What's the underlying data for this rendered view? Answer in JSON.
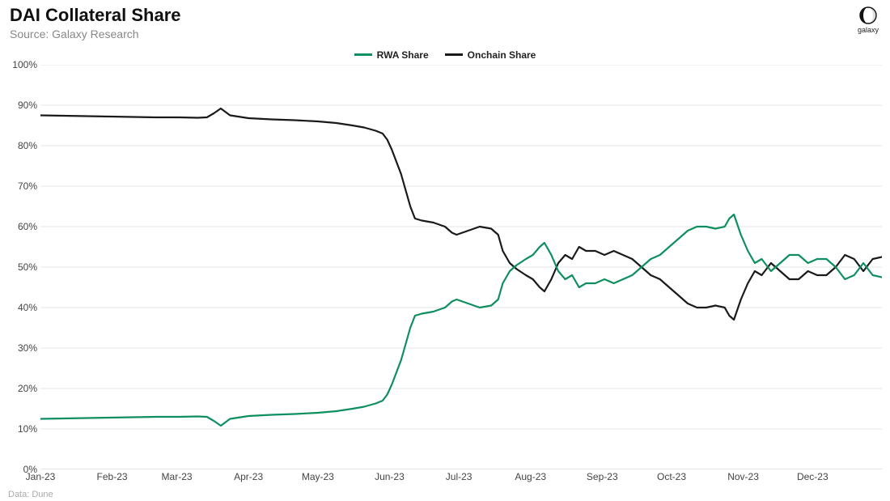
{
  "title": "DAI Collateral Share",
  "subtitle": "Source: Galaxy Research",
  "logo_label": "galaxy",
  "footer": "Data: Dune",
  "chart": {
    "type": "line",
    "background_color": "#ffffff",
    "grid_color": "#e5e5e5",
    "axis_color": "#cccccc",
    "line_width": 2.2,
    "ylim": [
      0,
      100
    ],
    "ytick_step": 10,
    "ytick_suffix": "%",
    "x_labels": [
      "Jan-23",
      "Feb-23",
      "Mar-23",
      "Apr-23",
      "May-23",
      "Jun-23",
      "Jul-23",
      "Aug-23",
      "Sep-23",
      "Oct-23",
      "Nov-23",
      "Dec-23"
    ],
    "x_count": 365,
    "legend": [
      {
        "label": "RWA Share",
        "color": "#0f8f5f"
      },
      {
        "label": "Onchain Share",
        "color": "#1a1a1a"
      }
    ],
    "series": {
      "rwa": {
        "color": "#0f8f5f",
        "points": [
          [
            0,
            12.5
          ],
          [
            10,
            12.6
          ],
          [
            20,
            12.7
          ],
          [
            30,
            12.8
          ],
          [
            40,
            12.9
          ],
          [
            50,
            13.0
          ],
          [
            60,
            13.0
          ],
          [
            68,
            13.1
          ],
          [
            72,
            13.0
          ],
          [
            75,
            12.0
          ],
          [
            78,
            10.8
          ],
          [
            82,
            12.5
          ],
          [
            90,
            13.2
          ],
          [
            100,
            13.5
          ],
          [
            110,
            13.7
          ],
          [
            120,
            14.0
          ],
          [
            128,
            14.4
          ],
          [
            135,
            15.0
          ],
          [
            140,
            15.5
          ],
          [
            145,
            16.3
          ],
          [
            148,
            17.0
          ],
          [
            150,
            18.5
          ],
          [
            152,
            21.0
          ],
          [
            154,
            24.0
          ],
          [
            156,
            27.0
          ],
          [
            158,
            31.0
          ],
          [
            160,
            35.0
          ],
          [
            162,
            38.0
          ],
          [
            165,
            38.5
          ],
          [
            170,
            39.0
          ],
          [
            175,
            40.0
          ],
          [
            178,
            41.5
          ],
          [
            180,
            42.0
          ],
          [
            185,
            41.0
          ],
          [
            190,
            40.0
          ],
          [
            195,
            40.5
          ],
          [
            198,
            42.0
          ],
          [
            200,
            46.0
          ],
          [
            203,
            49.0
          ],
          [
            206,
            50.5
          ],
          [
            210,
            52.0
          ],
          [
            213,
            53.0
          ],
          [
            216,
            55.0
          ],
          [
            218,
            56.0
          ],
          [
            221,
            53.0
          ],
          [
            224,
            49.0
          ],
          [
            227,
            47.0
          ],
          [
            230,
            48.0
          ],
          [
            233,
            45.0
          ],
          [
            236,
            46.0
          ],
          [
            240,
            46.0
          ],
          [
            244,
            47.0
          ],
          [
            248,
            46.0
          ],
          [
            252,
            47.0
          ],
          [
            256,
            48.0
          ],
          [
            260,
            50.0
          ],
          [
            264,
            52.0
          ],
          [
            268,
            53.0
          ],
          [
            272,
            55.0
          ],
          [
            276,
            57.0
          ],
          [
            280,
            59.0
          ],
          [
            284,
            60.0
          ],
          [
            288,
            60.0
          ],
          [
            292,
            59.5
          ],
          [
            296,
            60.0
          ],
          [
            298,
            62.0
          ],
          [
            300,
            63.0
          ],
          [
            303,
            58.0
          ],
          [
            306,
            54.0
          ],
          [
            309,
            51.0
          ],
          [
            312,
            52.0
          ],
          [
            316,
            49.0
          ],
          [
            320,
            51.0
          ],
          [
            324,
            53.0
          ],
          [
            328,
            53.0
          ],
          [
            332,
            51.0
          ],
          [
            336,
            52.0
          ],
          [
            340,
            52.0
          ],
          [
            344,
            50.0
          ],
          [
            348,
            47.0
          ],
          [
            352,
            48.0
          ],
          [
            356,
            51.0
          ],
          [
            360,
            48.0
          ],
          [
            364,
            47.5
          ]
        ]
      },
      "onchain": {
        "color": "#1a1a1a",
        "points": [
          [
            0,
            87.5
          ],
          [
            10,
            87.4
          ],
          [
            20,
            87.3
          ],
          [
            30,
            87.2
          ],
          [
            40,
            87.1
          ],
          [
            50,
            87.0
          ],
          [
            60,
            87.0
          ],
          [
            68,
            86.9
          ],
          [
            72,
            87.0
          ],
          [
            75,
            88.0
          ],
          [
            78,
            89.2
          ],
          [
            82,
            87.5
          ],
          [
            90,
            86.8
          ],
          [
            100,
            86.5
          ],
          [
            110,
            86.3
          ],
          [
            120,
            86.0
          ],
          [
            128,
            85.6
          ],
          [
            135,
            85.0
          ],
          [
            140,
            84.5
          ],
          [
            145,
            83.7
          ],
          [
            148,
            83.0
          ],
          [
            150,
            81.5
          ],
          [
            152,
            79.0
          ],
          [
            154,
            76.0
          ],
          [
            156,
            73.0
          ],
          [
            158,
            69.0
          ],
          [
            160,
            65.0
          ],
          [
            162,
            62.0
          ],
          [
            165,
            61.5
          ],
          [
            170,
            61.0
          ],
          [
            175,
            60.0
          ],
          [
            178,
            58.5
          ],
          [
            180,
            58.0
          ],
          [
            185,
            59.0
          ],
          [
            190,
            60.0
          ],
          [
            195,
            59.5
          ],
          [
            198,
            58.0
          ],
          [
            200,
            54.0
          ],
          [
            203,
            51.0
          ],
          [
            206,
            49.5
          ],
          [
            210,
            48.0
          ],
          [
            213,
            47.0
          ],
          [
            216,
            45.0
          ],
          [
            218,
            44.0
          ],
          [
            221,
            47.0
          ],
          [
            224,
            51.0
          ],
          [
            227,
            53.0
          ],
          [
            230,
            52.0
          ],
          [
            233,
            55.0
          ],
          [
            236,
            54.0
          ],
          [
            240,
            54.0
          ],
          [
            244,
            53.0
          ],
          [
            248,
            54.0
          ],
          [
            252,
            53.0
          ],
          [
            256,
            52.0
          ],
          [
            260,
            50.0
          ],
          [
            264,
            48.0
          ],
          [
            268,
            47.0
          ],
          [
            272,
            45.0
          ],
          [
            276,
            43.0
          ],
          [
            280,
            41.0
          ],
          [
            284,
            40.0
          ],
          [
            288,
            40.0
          ],
          [
            292,
            40.5
          ],
          [
            296,
            40.0
          ],
          [
            298,
            38.0
          ],
          [
            300,
            37.0
          ],
          [
            303,
            42.0
          ],
          [
            306,
            46.0
          ],
          [
            309,
            49.0
          ],
          [
            312,
            48.0
          ],
          [
            316,
            51.0
          ],
          [
            320,
            49.0
          ],
          [
            324,
            47.0
          ],
          [
            328,
            47.0
          ],
          [
            332,
            49.0
          ],
          [
            336,
            48.0
          ],
          [
            340,
            48.0
          ],
          [
            344,
            50.0
          ],
          [
            348,
            53.0
          ],
          [
            352,
            52.0
          ],
          [
            356,
            49.0
          ],
          [
            360,
            52.0
          ],
          [
            364,
            52.5
          ]
        ]
      }
    }
  }
}
